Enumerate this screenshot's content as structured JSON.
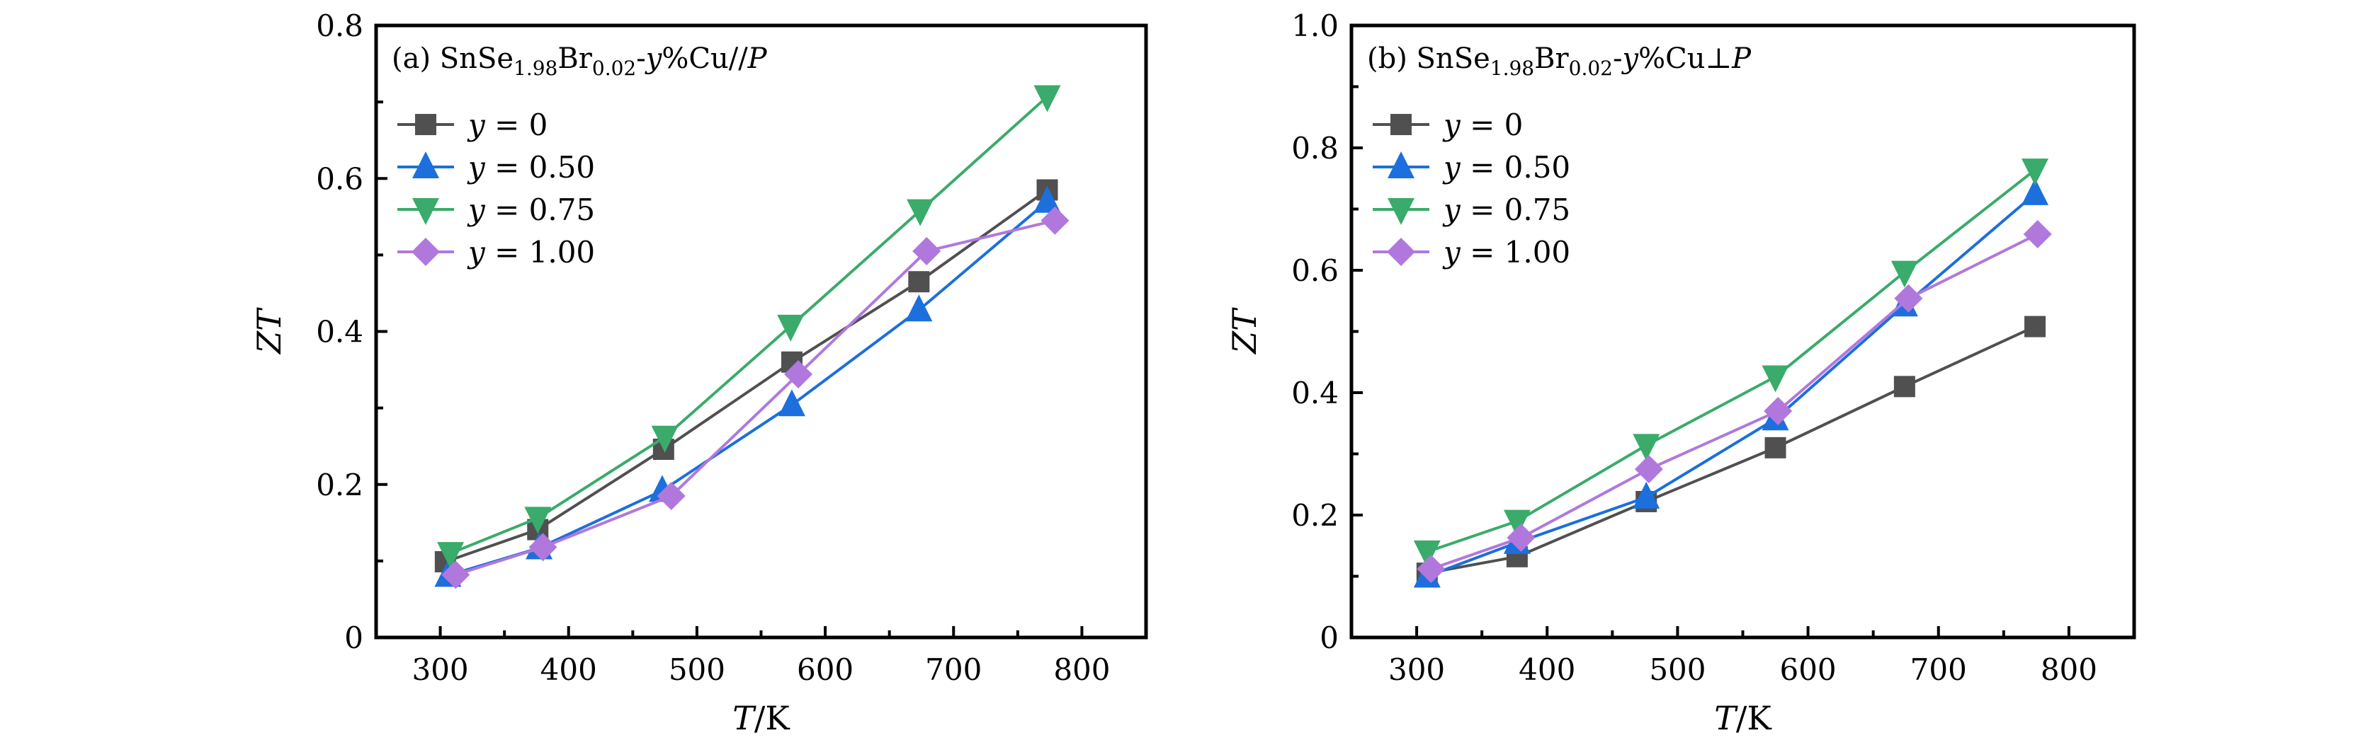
{
  "figure": {
    "series_styles": [
      {
        "name": "y = 0",
        "marker": "square",
        "color": "#505050"
      },
      {
        "name": "y = 0.50",
        "marker": "triangle-up",
        "color": "#1c6fdd"
      },
      {
        "name": "y = 0.75",
        "marker": "triangle-down",
        "color": "#3aab6a"
      },
      {
        "name": "y = 1.00",
        "marker": "diamond",
        "color": "#b078dc"
      }
    ]
  },
  "chart_data": [
    {
      "type": "line",
      "panel": "a",
      "title": "(a) SnSe1.98Br0.02-y%Cu//P",
      "title_parts": {
        "prefix": "(a) SnSe",
        "sub1": "1.98",
        "mid": "Br",
        "sub2": "0.02",
        "dash": "-",
        "var": "y",
        "suffix": "%Cu//",
        "end": "P"
      },
      "xlabel": "T/K",
      "ylabel": "ZT",
      "xlim": [
        250,
        850
      ],
      "ylim": [
        0,
        0.8
      ],
      "xticks": [
        300,
        400,
        500,
        600,
        700,
        800
      ],
      "xtick_labels": [
        "300",
        "400",
        "500",
        "600",
        "700",
        "800"
      ],
      "yticks": [
        0,
        0.2,
        0.4,
        0.6,
        0.8
      ],
      "ytick_labels": [
        "0",
        "0.2",
        "0.4",
        "0.6",
        "0.8"
      ],
      "grid": false,
      "legend_position": "top-left",
      "series": [
        {
          "name": "y = 0",
          "legend_var": "y",
          "legend_value": "0",
          "x": [
            304,
            376,
            474,
            574,
            673,
            773
          ],
          "y": [
            0.099,
            0.141,
            0.246,
            0.36,
            0.465,
            0.585
          ]
        },
        {
          "name": "y = 0.50",
          "legend_var": "y",
          "legend_value": "0.50",
          "x": [
            306,
            377,
            473,
            574,
            673,
            773
          ],
          "y": [
            0.081,
            0.117,
            0.192,
            0.304,
            0.428,
            0.57
          ]
        },
        {
          "name": "y = 0.75",
          "legend_var": "y",
          "legend_value": "0.75",
          "x": [
            308,
            376,
            475,
            573,
            674,
            773
          ],
          "y": [
            0.11,
            0.156,
            0.262,
            0.407,
            0.558,
            0.707
          ]
        },
        {
          "name": "y = 1.00",
          "legend_var": "y",
          "legend_value": "1.00",
          "x": [
            312,
            380,
            480,
            579,
            679,
            779
          ],
          "y": [
            0.082,
            0.118,
            0.185,
            0.344,
            0.505,
            0.545
          ]
        }
      ]
    },
    {
      "type": "line",
      "panel": "b",
      "title": "(b) SnSe1.98Br0.02-y%Cu⊥P",
      "title_parts": {
        "prefix": "(b) SnSe",
        "sub1": "1.98",
        "mid": "Br",
        "sub2": "0.02",
        "dash": "-",
        "var": "y",
        "suffix": "%Cu⊥",
        "end": "P"
      },
      "xlabel": "T/K",
      "ylabel": "ZT",
      "xlim": [
        250,
        850
      ],
      "ylim": [
        0,
        1.0
      ],
      "xticks": [
        300,
        400,
        500,
        600,
        700,
        800
      ],
      "xtick_labels": [
        "300",
        "400",
        "500",
        "600",
        "700",
        "800"
      ],
      "yticks": [
        0,
        0.2,
        0.4,
        0.6,
        0.8,
        1.0
      ],
      "ytick_labels": [
        "0",
        "0.2",
        "0.4",
        "0.6",
        "0.8",
        "1.0"
      ],
      "grid": false,
      "legend_position": "top-left",
      "series": [
        {
          "name": "y = 0",
          "legend_var": "y",
          "legend_value": "0",
          "x": [
            308,
            377,
            476,
            575,
            674,
            774
          ],
          "y": [
            0.105,
            0.132,
            0.222,
            0.31,
            0.41,
            0.508
          ]
        },
        {
          "name": "y = 0.50",
          "legend_var": "y",
          "legend_value": "0.50",
          "x": [
            308,
            377,
            476,
            575,
            674,
            774
          ],
          "y": [
            0.1,
            0.155,
            0.229,
            0.357,
            0.543,
            0.725
          ]
        },
        {
          "name": "y = 0.75",
          "legend_var": "y",
          "legend_value": "0.75",
          "x": [
            308,
            377,
            476,
            575,
            674,
            774
          ],
          "y": [
            0.14,
            0.19,
            0.314,
            0.426,
            0.597,
            0.764
          ]
        },
        {
          "name": "y = 1.00",
          "legend_var": "y",
          "legend_value": "1.00",
          "x": [
            311,
            380,
            478,
            577,
            677,
            776
          ],
          "y": [
            0.112,
            0.163,
            0.275,
            0.37,
            0.554,
            0.659
          ]
        }
      ]
    }
  ]
}
